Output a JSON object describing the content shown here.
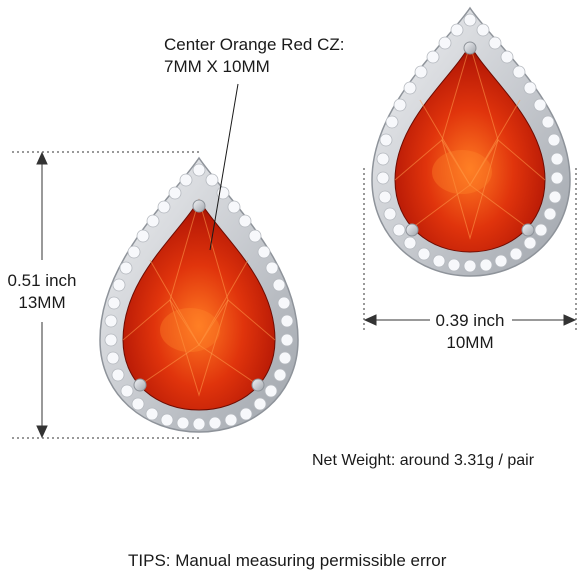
{
  "callout": {
    "line1": "Center Orange Red CZ:",
    "line2": "7MM X 10MM"
  },
  "height_dimension": {
    "line1": "0.51 inch",
    "line2": "13MM"
  },
  "width_dimension": {
    "line1": "0.39 inch",
    "line2": "10MM"
  },
  "net_weight": "Net Weight: around 3.31g / pair",
  "tips": "TIPS: Manual measuring permissible error",
  "colors": {
    "gem_dark": "#8f1204",
    "gem_mid": "#d62a0a",
    "gem_light": "#ff6a1a",
    "metal": "#d9dce0",
    "metal_dark": "#a7abb2",
    "stone": "#f4f6fa"
  }
}
